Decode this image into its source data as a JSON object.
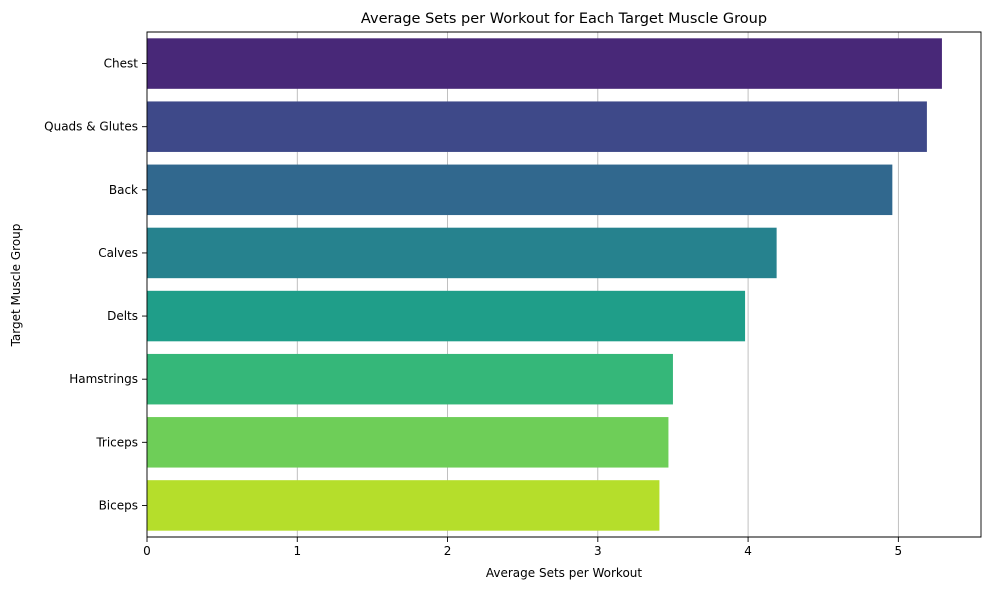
{
  "chart_data": {
    "type": "bar",
    "orientation": "horizontal",
    "title": "Average Sets per Workout for Each Target Muscle Group",
    "xlabel": "Average Sets per Workout",
    "ylabel": "Target Muscle Group",
    "categories": [
      "Chest",
      "Quads & Glutes",
      "Back",
      "Calves",
      "Delts",
      "Hamstrings",
      "Triceps",
      "Biceps"
    ],
    "values": [
      5.29,
      5.19,
      4.96,
      4.19,
      3.98,
      3.5,
      3.47,
      3.41
    ],
    "colors": [
      "#482878",
      "#3e4989",
      "#31688e",
      "#26828e",
      "#1f9e89",
      "#35b779",
      "#6ece58",
      "#b5de2b"
    ],
    "xlim": [
      0,
      5.55
    ],
    "xticks": [
      0,
      1,
      2,
      3,
      4,
      5
    ],
    "grid": "x-major"
  }
}
